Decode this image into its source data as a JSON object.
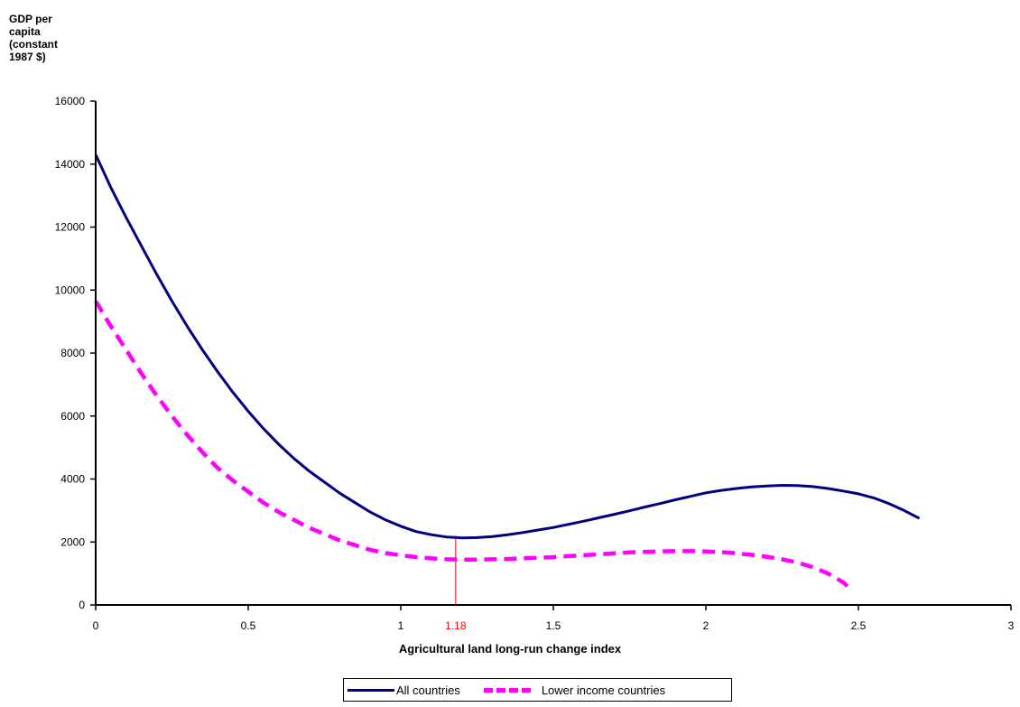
{
  "chart_data": {
    "type": "line",
    "title": "",
    "xlabel": "Agricultural land long-run change index",
    "ylabel": "GDP per capita (constant 1987 $)",
    "xlim": [
      0,
      3
    ],
    "ylim": [
      0,
      16000
    ],
    "xticks": [
      0,
      0.5,
      1,
      1.5,
      2,
      2.5,
      3
    ],
    "xtick_labels": [
      "0",
      "0.5",
      "1",
      "1.5",
      "2",
      "2.5",
      "3"
    ],
    "yticks": [
      0,
      2000,
      4000,
      6000,
      8000,
      10000,
      12000,
      14000,
      16000
    ],
    "ytick_labels": [
      "0",
      "2000",
      "4000",
      "6000",
      "8000",
      "10000",
      "12000",
      "14000",
      "16000"
    ],
    "grid": false,
    "legend_position": "bottom",
    "annotation": {
      "x": 1.18,
      "label": "1.18",
      "color": "#ff0000"
    },
    "series": [
      {
        "name": "All countries",
        "color": "#000080",
        "style": "solid",
        "x": [
          0,
          0.05,
          0.1,
          0.15,
          0.2,
          0.25,
          0.3,
          0.35,
          0.4,
          0.45,
          0.5,
          0.55,
          0.6,
          0.65,
          0.7,
          0.75,
          0.8,
          0.85,
          0.9,
          0.95,
          1.0,
          1.05,
          1.1,
          1.15,
          1.2,
          1.25,
          1.3,
          1.35,
          1.4,
          1.45,
          1.5,
          1.55,
          1.6,
          1.65,
          1.7,
          1.75,
          1.8,
          1.85,
          1.9,
          1.95,
          2.0,
          2.05,
          2.1,
          2.15,
          2.2,
          2.25,
          2.3,
          2.35,
          2.4,
          2.45,
          2.5,
          2.55,
          2.6,
          2.65,
          2.7
        ],
        "values": [
          14300,
          13250,
          12300,
          11400,
          10500,
          9650,
          8850,
          8100,
          7400,
          6750,
          6150,
          5600,
          5100,
          4650,
          4250,
          3900,
          3550,
          3250,
          2950,
          2700,
          2500,
          2330,
          2230,
          2160,
          2130,
          2140,
          2170,
          2230,
          2300,
          2380,
          2460,
          2560,
          2660,
          2770,
          2880,
          2990,
          3110,
          3220,
          3340,
          3450,
          3560,
          3640,
          3700,
          3750,
          3780,
          3800,
          3790,
          3760,
          3700,
          3620,
          3530,
          3400,
          3220,
          3000,
          2750
        ]
      },
      {
        "name": "Lower income countries",
        "color": "#ff00ff",
        "style": "dashed",
        "x": [
          0,
          0.05,
          0.1,
          0.15,
          0.2,
          0.25,
          0.3,
          0.35,
          0.4,
          0.45,
          0.5,
          0.55,
          0.6,
          0.65,
          0.7,
          0.75,
          0.8,
          0.85,
          0.9,
          0.95,
          1.0,
          1.05,
          1.1,
          1.15,
          1.2,
          1.25,
          1.3,
          1.35,
          1.4,
          1.45,
          1.5,
          1.55,
          1.6,
          1.65,
          1.7,
          1.75,
          1.8,
          1.85,
          1.9,
          1.95,
          2.0,
          2.05,
          2.1,
          2.15,
          2.2,
          2.25,
          2.3,
          2.35,
          2.4,
          2.45,
          2.48
        ],
        "values": [
          9650,
          8850,
          8100,
          7350,
          6650,
          6000,
          5400,
          4850,
          4350,
          3950,
          3600,
          3250,
          2950,
          2700,
          2450,
          2250,
          2050,
          1900,
          1750,
          1650,
          1580,
          1520,
          1480,
          1450,
          1440,
          1440,
          1450,
          1460,
          1480,
          1500,
          1520,
          1550,
          1580,
          1610,
          1640,
          1670,
          1690,
          1700,
          1710,
          1710,
          1700,
          1680,
          1640,
          1590,
          1530,
          1450,
          1350,
          1200,
          1000,
          720,
          450
        ]
      }
    ]
  }
}
